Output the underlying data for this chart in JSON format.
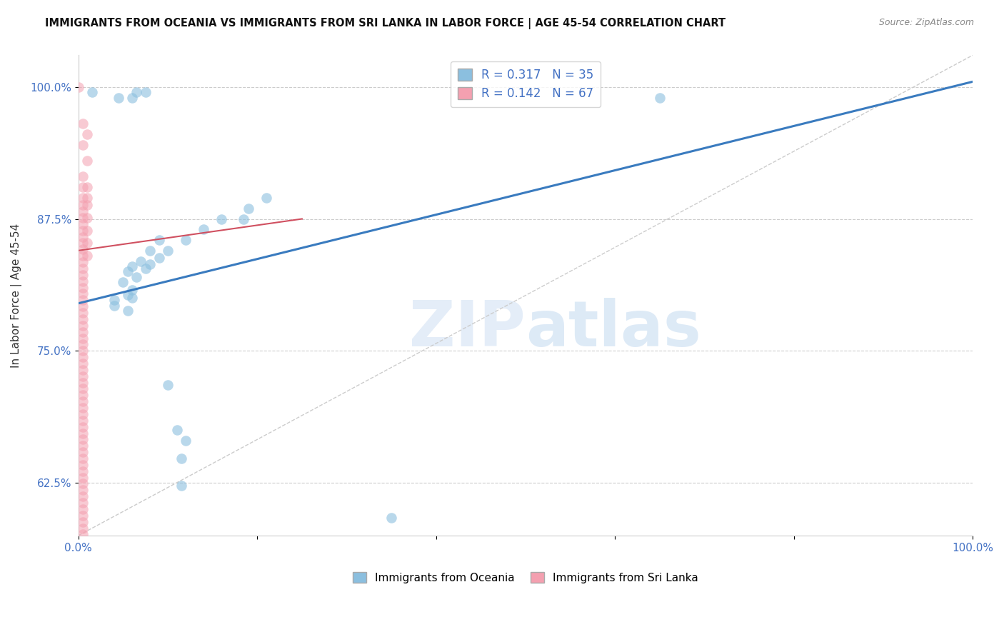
{
  "title": "IMMIGRANTS FROM OCEANIA VS IMMIGRANTS FROM SRI LANKA IN LABOR FORCE | AGE 45-54 CORRELATION CHART",
  "source": "Source: ZipAtlas.com",
  "ylabel": "In Labor Force | Age 45-54",
  "xlim": [
    0.0,
    1.0
  ],
  "ylim": [
    0.575,
    1.03
  ],
  "x_ticks": [
    0.0,
    0.2,
    0.4,
    0.6,
    0.8,
    1.0
  ],
  "x_tick_labels": [
    "0.0%",
    "",
    "",
    "",
    "",
    "100.0%"
  ],
  "y_ticks": [
    0.625,
    0.75,
    0.875,
    1.0
  ],
  "y_tick_labels": [
    "62.5%",
    "75.0%",
    "87.5%",
    "100.0%"
  ],
  "oceania_color": "#8bbfdf",
  "srilanka_color": "#f4a0b0",
  "trendline_oceania_color": "#3a7bbf",
  "trendline_srilanka_color": "#d05060",
  "diagonal_color": "#cccccc",
  "trendline_oceania": [
    [
      0.0,
      0.795
    ],
    [
      1.0,
      1.005
    ]
  ],
  "trendline_srilanka": [
    [
      0.0,
      0.845
    ],
    [
      0.25,
      0.875
    ]
  ],
  "oceania_scatter": [
    [
      0.015,
      0.995
    ],
    [
      0.065,
      0.995
    ],
    [
      0.075,
      0.995
    ],
    [
      0.06,
      0.99
    ],
    [
      0.045,
      0.99
    ],
    [
      0.19,
      0.885
    ],
    [
      0.21,
      0.895
    ],
    [
      0.16,
      0.875
    ],
    [
      0.185,
      0.875
    ],
    [
      0.14,
      0.865
    ],
    [
      0.09,
      0.855
    ],
    [
      0.12,
      0.855
    ],
    [
      0.08,
      0.845
    ],
    [
      0.1,
      0.845
    ],
    [
      0.07,
      0.835
    ],
    [
      0.09,
      0.838
    ],
    [
      0.06,
      0.83
    ],
    [
      0.08,
      0.832
    ],
    [
      0.055,
      0.825
    ],
    [
      0.075,
      0.828
    ],
    [
      0.065,
      0.82
    ],
    [
      0.05,
      0.815
    ],
    [
      0.06,
      0.808
    ],
    [
      0.055,
      0.803
    ],
    [
      0.04,
      0.798
    ],
    [
      0.06,
      0.8
    ],
    [
      0.04,
      0.793
    ],
    [
      0.055,
      0.788
    ],
    [
      0.1,
      0.718
    ],
    [
      0.11,
      0.675
    ],
    [
      0.12,
      0.665
    ],
    [
      0.115,
      0.648
    ],
    [
      0.115,
      0.622
    ],
    [
      0.35,
      0.592
    ],
    [
      0.65,
      0.99
    ]
  ],
  "srilanka_scatter": [
    [
      0.0,
      1.0
    ],
    [
      0.005,
      0.965
    ],
    [
      0.01,
      0.955
    ],
    [
      0.005,
      0.945
    ],
    [
      0.01,
      0.93
    ],
    [
      0.005,
      0.915
    ],
    [
      0.005,
      0.905
    ],
    [
      0.01,
      0.905
    ],
    [
      0.005,
      0.895
    ],
    [
      0.01,
      0.895
    ],
    [
      0.005,
      0.888
    ],
    [
      0.01,
      0.888
    ],
    [
      0.005,
      0.882
    ],
    [
      0.005,
      0.876
    ],
    [
      0.01,
      0.876
    ],
    [
      0.005,
      0.87
    ],
    [
      0.005,
      0.864
    ],
    [
      0.01,
      0.864
    ],
    [
      0.005,
      0.858
    ],
    [
      0.005,
      0.852
    ],
    [
      0.01,
      0.852
    ],
    [
      0.005,
      0.846
    ],
    [
      0.005,
      0.84
    ],
    [
      0.01,
      0.84
    ],
    [
      0.005,
      0.834
    ],
    [
      0.005,
      0.828
    ],
    [
      0.005,
      0.822
    ],
    [
      0.005,
      0.816
    ],
    [
      0.005,
      0.81
    ],
    [
      0.005,
      0.804
    ],
    [
      0.005,
      0.798
    ],
    [
      0.005,
      0.792
    ],
    [
      0.005,
      0.786
    ],
    [
      0.005,
      0.78
    ],
    [
      0.005,
      0.774
    ],
    [
      0.005,
      0.768
    ],
    [
      0.005,
      0.762
    ],
    [
      0.005,
      0.756
    ],
    [
      0.005,
      0.75
    ],
    [
      0.005,
      0.744
    ],
    [
      0.005,
      0.738
    ],
    [
      0.005,
      0.732
    ],
    [
      0.005,
      0.726
    ],
    [
      0.005,
      0.72
    ],
    [
      0.005,
      0.714
    ],
    [
      0.005,
      0.708
    ],
    [
      0.005,
      0.702
    ],
    [
      0.005,
      0.696
    ],
    [
      0.005,
      0.69
    ],
    [
      0.005,
      0.684
    ],
    [
      0.005,
      0.678
    ],
    [
      0.005,
      0.672
    ],
    [
      0.005,
      0.666
    ],
    [
      0.005,
      0.66
    ],
    [
      0.005,
      0.654
    ],
    [
      0.005,
      0.648
    ],
    [
      0.005,
      0.642
    ],
    [
      0.005,
      0.636
    ],
    [
      0.005,
      0.63
    ],
    [
      0.005,
      0.624
    ],
    [
      0.005,
      0.618
    ],
    [
      0.005,
      0.612
    ],
    [
      0.005,
      0.606
    ],
    [
      0.005,
      0.6
    ],
    [
      0.005,
      0.594
    ],
    [
      0.005,
      0.588
    ],
    [
      0.005,
      0.582
    ],
    [
      0.005,
      0.576
    ]
  ]
}
